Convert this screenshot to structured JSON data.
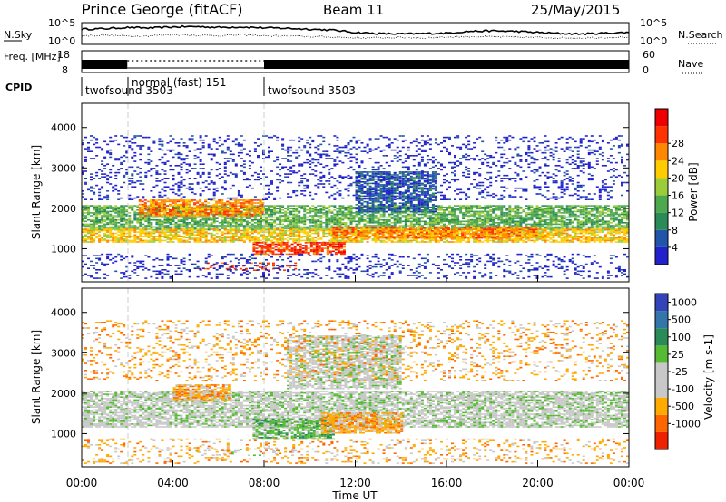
{
  "header": {
    "station": "Prince George (fitACF)",
    "beam": "Beam 11",
    "date": "25/May/2015"
  },
  "chart_data": [
    {
      "type": "line",
      "id": "noise",
      "left_label": "N.Sky",
      "right_label": "N.Search",
      "left_ticks": [
        "10^5",
        "10^0"
      ],
      "right_ticks": [
        "10^5",
        "10^0"
      ],
      "series": [
        {
          "values": [
            0.7,
            0.72,
            0.78,
            0.75,
            0.8,
            0.82,
            0.78,
            0.8,
            0.76,
            0.74,
            0.7,
            0.66,
            0.55,
            0.5,
            0.48,
            0.5,
            0.52,
            0.6,
            0.62,
            0.6,
            0.55,
            0.5,
            0.48,
            0.52,
            0.55
          ]
        },
        {
          "values": [
            0.4,
            0.42,
            0.38,
            0.4,
            0.45,
            0.42,
            0.4,
            0.44,
            0.4,
            0.38,
            0.36,
            0.34,
            0.3,
            0.3,
            0.32,
            0.3,
            0.34,
            0.36,
            0.35,
            0.33,
            0.32,
            0.3,
            0.3,
            0.32,
            0.34
          ]
        }
      ]
    },
    {
      "type": "line",
      "id": "freq",
      "left_label": "Freq. [MHz]",
      "right_label": "Nave",
      "left_ticks": [
        "18",
        "8"
      ],
      "right_ticks": [
        "60",
        "0"
      ],
      "segments": [
        {
          "start": 0.0,
          "end": 2.0,
          "mode": "dense"
        },
        {
          "start": 2.0,
          "end": 8.0,
          "mode": "dotted"
        },
        {
          "start": 8.0,
          "end": 24.0,
          "mode": "dense"
        }
      ]
    },
    {
      "type": "table",
      "id": "cpid",
      "label": "CPID",
      "entries": [
        {
          "time": 0.0,
          "text": "twofsound 3503"
        },
        {
          "time": 2.0,
          "text": "normal (fast) 151"
        },
        {
          "time": 8.0,
          "text": "twofsound 3503"
        }
      ]
    },
    {
      "type": "heatmap",
      "id": "power",
      "ylabel": "Slant Range [km]",
      "ylim": [
        180,
        4600
      ],
      "yticks": [
        1000,
        2000,
        3000,
        4000
      ],
      "colorbar_label": "Power [dB]",
      "colorbar_ticks": [
        "4",
        "8",
        "12",
        "16",
        "20",
        "24",
        "28"
      ],
      "colors": [
        "#2222cc",
        "#2255aa",
        "#2a8a58",
        "#4ea84e",
        "#9ccc3a",
        "#ffcc00",
        "#ff8800",
        "#ff3300",
        "#ee0000"
      ],
      "bands": [
        {
          "t0": 0.0,
          "t1": 24.0,
          "r0": 1450,
          "r1": 2050,
          "level": 3
        },
        {
          "t0": 0.0,
          "t1": 24.0,
          "r0": 1150,
          "r1": 1500,
          "level": 5
        },
        {
          "t0": 2.5,
          "t1": 8.0,
          "r0": 1800,
          "r1": 2200,
          "level": 6
        },
        {
          "t0": 7.5,
          "t1": 11.5,
          "r0": 850,
          "r1": 1150,
          "level": 7
        },
        {
          "t0": 5.0,
          "t1": 9.5,
          "r0": 450,
          "r1": 650,
          "level": 7
        },
        {
          "t0": 11.0,
          "t1": 20.0,
          "r0": 1250,
          "r1": 1500,
          "level": 6
        },
        {
          "t0": 12.0,
          "t1": 15.5,
          "r0": 1900,
          "r1": 2900,
          "level": 1
        },
        {
          "t0": 0.0,
          "t1": 24.0,
          "r0": 250,
          "r1": 850,
          "level": 0
        },
        {
          "t0": 0.0,
          "t1": 24.0,
          "r0": 2200,
          "r1": 3800,
          "level": 0
        }
      ]
    },
    {
      "type": "heatmap",
      "id": "velocity",
      "ylabel": "Slant Range [km]",
      "ylim": [
        180,
        4600
      ],
      "yticks": [
        1000,
        2000,
        3000,
        4000
      ],
      "colorbar_label": "Velocity [m s-1]",
      "colorbar_ticks": [
        "1000",
        "500",
        "100",
        "25",
        "-25",
        "-100",
        "-500",
        "-1000"
      ],
      "colors": [
        "#3344bb",
        "#3377aa",
        "#2a8a58",
        "#55bb33",
        "#c8c8c8",
        "#c8c8c8",
        "#ffaa00",
        "#ff6600",
        "#ee2200"
      ],
      "bands": [
        {
          "t0": 0.0,
          "t1": 24.0,
          "r0": 1150,
          "r1": 2050,
          "level": 4
        },
        {
          "t0": 7.5,
          "t1": 11.0,
          "r0": 850,
          "r1": 1350,
          "level": 3
        },
        {
          "t0": 4.0,
          "t1": 6.5,
          "r0": 1800,
          "r1": 2200,
          "level": 6
        },
        {
          "t0": 10.5,
          "t1": 14.0,
          "r0": 1000,
          "r1": 1500,
          "level": 6
        },
        {
          "t0": 5.0,
          "t1": 9.5,
          "r0": 450,
          "r1": 650,
          "level": 4
        },
        {
          "t0": 9.0,
          "t1": 14.0,
          "r0": 2100,
          "r1": 3400,
          "level": 4
        },
        {
          "t0": 0.0,
          "t1": 24.0,
          "r0": 250,
          "r1": 850,
          "level": 6
        },
        {
          "t0": 0.0,
          "t1": 24.0,
          "r0": 2300,
          "r1": 3800,
          "level": 6
        }
      ]
    }
  ],
  "xaxis": {
    "label": "Time UT",
    "ticks": [
      "00:00",
      "04:00",
      "08:00",
      "12:00",
      "16:00",
      "20:00",
      "00:00"
    ],
    "xlim": [
      0,
      24
    ],
    "tick_values": [
      0,
      4,
      8,
      12,
      16,
      20,
      24
    ],
    "mode_change_times": [
      2.0,
      8.0
    ]
  }
}
